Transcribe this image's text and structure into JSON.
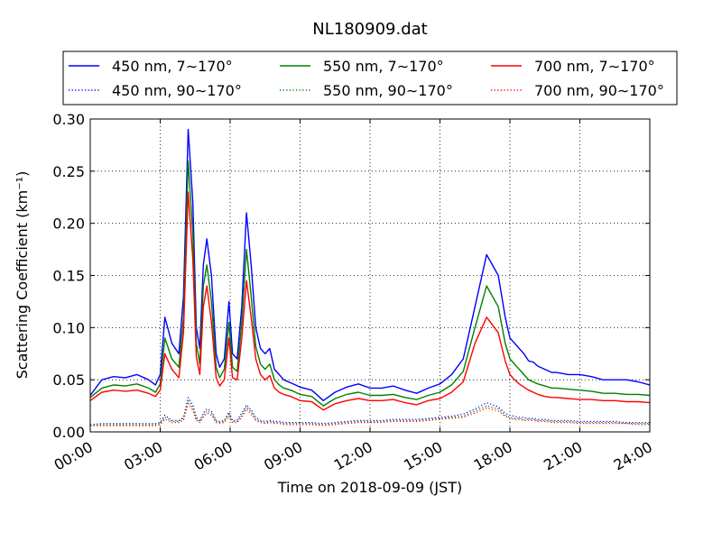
{
  "chart_data": {
    "type": "line",
    "title": "NL180909.dat",
    "xlabel": "Time on 2018-09-09 (JST)",
    "ylabel": "Scattering Coefficient (km⁻¹)",
    "xlim": [
      0,
      24
    ],
    "ylim": [
      0,
      0.3
    ],
    "x_ticks": [
      "00:00",
      "03:00",
      "06:00",
      "09:00",
      "12:00",
      "15:00",
      "18:00",
      "21:00",
      "24:00"
    ],
    "y_ticks": [
      "0.00",
      "0.05",
      "0.10",
      "0.15",
      "0.20",
      "0.25",
      "0.30"
    ],
    "grid": true,
    "legend_position": "top",
    "x": [
      0.0,
      0.5,
      1.0,
      1.5,
      2.0,
      2.5,
      2.8,
      3.0,
      3.2,
      3.5,
      3.8,
      4.0,
      4.2,
      4.4,
      4.55,
      4.7,
      4.85,
      5.0,
      5.2,
      5.4,
      5.55,
      5.75,
      5.95,
      6.1,
      6.3,
      6.5,
      6.7,
      6.9,
      7.1,
      7.3,
      7.5,
      7.7,
      7.9,
      8.1,
      8.3,
      8.6,
      8.8,
      9.0,
      9.5,
      10.0,
      10.5,
      11.0,
      11.5,
      12.0,
      12.5,
      13.0,
      13.5,
      14.0,
      14.5,
      15.0,
      15.5,
      16.0,
      16.5,
      17.0,
      17.5,
      17.8,
      18.0,
      18.2,
      18.4,
      18.6,
      18.8,
      19.0,
      19.2,
      19.5,
      19.8,
      20.0,
      20.5,
      21.0,
      21.5,
      22.0,
      22.5,
      23.0,
      23.5,
      24.0
    ],
    "series": [
      {
        "name": "450 nm, 7∼170°",
        "color": "#0000ff",
        "style": "solid",
        "values": [
          0.035,
          0.05,
          0.053,
          0.052,
          0.055,
          0.05,
          0.045,
          0.055,
          0.11,
          0.085,
          0.075,
          0.13,
          0.29,
          0.22,
          0.1,
          0.08,
          0.16,
          0.185,
          0.15,
          0.075,
          0.062,
          0.07,
          0.125,
          0.075,
          0.07,
          0.12,
          0.21,
          0.16,
          0.1,
          0.08,
          0.075,
          0.08,
          0.06,
          0.055,
          0.05,
          0.047,
          0.045,
          0.043,
          0.04,
          0.03,
          0.038,
          0.043,
          0.046,
          0.042,
          0.042,
          0.044,
          0.04,
          0.037,
          0.042,
          0.046,
          0.055,
          0.07,
          0.12,
          0.17,
          0.15,
          0.11,
          0.09,
          0.085,
          0.08,
          0.075,
          0.068,
          0.067,
          0.063,
          0.06,
          0.057,
          0.057,
          0.055,
          0.055,
          0.053,
          0.05,
          0.05,
          0.05,
          0.048,
          0.045
        ]
      },
      {
        "name": "550 nm, 7∼170°",
        "color": "#008000",
        "style": "solid",
        "values": [
          0.033,
          0.042,
          0.045,
          0.044,
          0.046,
          0.042,
          0.038,
          0.046,
          0.09,
          0.07,
          0.062,
          0.11,
          0.26,
          0.19,
          0.085,
          0.065,
          0.14,
          0.16,
          0.125,
          0.062,
          0.052,
          0.06,
          0.105,
          0.062,
          0.058,
          0.105,
          0.175,
          0.13,
          0.082,
          0.065,
          0.06,
          0.065,
          0.05,
          0.045,
          0.042,
          0.04,
          0.038,
          0.036,
          0.034,
          0.025,
          0.032,
          0.036,
          0.038,
          0.035,
          0.035,
          0.036,
          0.033,
          0.031,
          0.035,
          0.038,
          0.045,
          0.058,
          0.1,
          0.14,
          0.12,
          0.085,
          0.07,
          0.065,
          0.06,
          0.055,
          0.05,
          0.048,
          0.046,
          0.044,
          0.042,
          0.042,
          0.041,
          0.04,
          0.039,
          0.037,
          0.037,
          0.036,
          0.036,
          0.035
        ]
      },
      {
        "name": "700 nm, 7∼170°",
        "color": "#ff0000",
        "style": "solid",
        "values": [
          0.03,
          0.038,
          0.04,
          0.039,
          0.04,
          0.037,
          0.034,
          0.04,
          0.075,
          0.06,
          0.052,
          0.095,
          0.23,
          0.165,
          0.072,
          0.055,
          0.12,
          0.14,
          0.105,
          0.052,
          0.044,
          0.05,
          0.09,
          0.052,
          0.05,
          0.09,
          0.145,
          0.11,
          0.07,
          0.055,
          0.05,
          0.054,
          0.042,
          0.038,
          0.036,
          0.034,
          0.032,
          0.03,
          0.029,
          0.021,
          0.027,
          0.03,
          0.032,
          0.03,
          0.03,
          0.031,
          0.028,
          0.026,
          0.03,
          0.032,
          0.038,
          0.048,
          0.085,
          0.11,
          0.095,
          0.068,
          0.055,
          0.05,
          0.046,
          0.043,
          0.04,
          0.038,
          0.036,
          0.034,
          0.033,
          0.033,
          0.032,
          0.031,
          0.031,
          0.03,
          0.03,
          0.029,
          0.029,
          0.028
        ]
      },
      {
        "name": "450 nm, 90∼170°",
        "color": "#0000ff",
        "style": "dotted",
        "values": [
          0.007,
          0.008,
          0.008,
          0.008,
          0.008,
          0.008,
          0.008,
          0.009,
          0.016,
          0.011,
          0.011,
          0.014,
          0.033,
          0.026,
          0.014,
          0.011,
          0.018,
          0.022,
          0.02,
          0.011,
          0.01,
          0.011,
          0.019,
          0.011,
          0.011,
          0.018,
          0.026,
          0.021,
          0.014,
          0.011,
          0.01,
          0.011,
          0.01,
          0.01,
          0.009,
          0.009,
          0.009,
          0.009,
          0.009,
          0.008,
          0.009,
          0.01,
          0.011,
          0.011,
          0.011,
          0.012,
          0.012,
          0.012,
          0.013,
          0.014,
          0.015,
          0.017,
          0.022,
          0.028,
          0.024,
          0.018,
          0.016,
          0.015,
          0.014,
          0.014,
          0.013,
          0.013,
          0.012,
          0.012,
          0.011,
          0.011,
          0.011,
          0.01,
          0.01,
          0.01,
          0.01,
          0.009,
          0.009,
          0.009
        ]
      },
      {
        "name": "550 nm, 90∼170°",
        "color": "#008000",
        "style": "dotted",
        "values": [
          0.006,
          0.007,
          0.007,
          0.007,
          0.007,
          0.007,
          0.007,
          0.008,
          0.014,
          0.01,
          0.01,
          0.013,
          0.03,
          0.023,
          0.012,
          0.01,
          0.016,
          0.02,
          0.018,
          0.01,
          0.009,
          0.01,
          0.017,
          0.01,
          0.01,
          0.016,
          0.024,
          0.019,
          0.012,
          0.01,
          0.009,
          0.01,
          0.009,
          0.009,
          0.008,
          0.008,
          0.008,
          0.008,
          0.008,
          0.007,
          0.008,
          0.009,
          0.01,
          0.01,
          0.01,
          0.011,
          0.011,
          0.011,
          0.012,
          0.013,
          0.014,
          0.015,
          0.02,
          0.025,
          0.022,
          0.016,
          0.014,
          0.013,
          0.013,
          0.012,
          0.012,
          0.012,
          0.011,
          0.011,
          0.01,
          0.01,
          0.01,
          0.009,
          0.009,
          0.009,
          0.009,
          0.008,
          0.008,
          0.008
        ]
      },
      {
        "name": "700 nm, 90∼170°",
        "color": "#ff0000",
        "style": "dotted",
        "values": [
          0.006,
          0.006,
          0.006,
          0.006,
          0.006,
          0.006,
          0.006,
          0.007,
          0.012,
          0.009,
          0.009,
          0.011,
          0.027,
          0.021,
          0.011,
          0.009,
          0.014,
          0.018,
          0.016,
          0.009,
          0.008,
          0.009,
          0.015,
          0.009,
          0.009,
          0.014,
          0.022,
          0.017,
          0.011,
          0.009,
          0.008,
          0.009,
          0.008,
          0.008,
          0.007,
          0.007,
          0.007,
          0.007,
          0.007,
          0.006,
          0.007,
          0.008,
          0.009,
          0.009,
          0.009,
          0.01,
          0.01,
          0.01,
          0.011,
          0.012,
          0.013,
          0.014,
          0.018,
          0.023,
          0.02,
          0.015,
          0.013,
          0.012,
          0.012,
          0.011,
          0.011,
          0.011,
          0.01,
          0.01,
          0.009,
          0.009,
          0.009,
          0.008,
          0.008,
          0.008,
          0.008,
          0.008,
          0.007,
          0.007
        ]
      }
    ],
    "legend_order": [
      0,
      1,
      2,
      3,
      4,
      5
    ]
  }
}
